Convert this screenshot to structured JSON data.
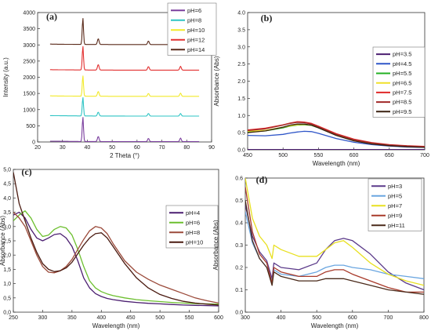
{
  "chart_data": [
    {
      "panel": "(a)",
      "type": "line",
      "title": "",
      "xlabel": "2 Theta (°)",
      "ylabel": "Intensity (a.u.)",
      "xlim": [
        20,
        90
      ],
      "ylim": [
        0,
        4000
      ],
      "xticks": [
        20,
        30,
        40,
        50,
        60,
        70,
        80,
        90
      ],
      "yticks": [
        0,
        500,
        1000,
        1500,
        2000,
        2500,
        3000,
        3500,
        4000
      ],
      "legend": "top-right",
      "peaks_2theta": [
        38.2,
        44.4,
        64.6,
        77.5
      ],
      "series": [
        {
          "name": "pH=6",
          "color": "#7b3f9e",
          "baseline": 10,
          "peak_heights": [
            760,
            160,
            100,
            110
          ]
        },
        {
          "name": "pH=8",
          "color": "#2ec4c4",
          "baseline": 800,
          "peak_heights": [
            580,
            120,
            80,
            80
          ]
        },
        {
          "name": "pH=10",
          "color": "#f2ea2a",
          "baseline": 1410,
          "peak_heights": [
            640,
            150,
            90,
            100
          ]
        },
        {
          "name": "pH=12",
          "color": "#e23030",
          "baseline": 2220,
          "peak_heights": [
            740,
            170,
            110,
            120
          ]
        },
        {
          "name": "pH=14",
          "color": "#5a2a1a",
          "baseline": 3010,
          "peak_heights": [
            820,
            180,
            110,
            130
          ]
        }
      ]
    },
    {
      "panel": "(b)",
      "type": "line",
      "title": "",
      "xlabel": "Wavelength (nm)",
      "ylabel": "Absorbance (Abs)",
      "xlim": [
        450,
        700
      ],
      "ylim": [
        0,
        4.0
      ],
      "xticks": [
        450,
        500,
        550,
        600,
        650,
        700
      ],
      "yticks": [
        0.0,
        0.5,
        1.0,
        1.5,
        2.0,
        2.5,
        3.0,
        3.5,
        4.0
      ],
      "legend": "right",
      "x": [
        450,
        475,
        500,
        510,
        520,
        530,
        540,
        550,
        575,
        600,
        625,
        650,
        675,
        700
      ],
      "series": [
        {
          "name": "pH=3.5",
          "color": "#4b1e70",
          "values": [
            0.01,
            0.01,
            0.01,
            0.01,
            0.01,
            0.01,
            0.01,
            0.01,
            0.01,
            0.01,
            0.01,
            0.01,
            0.01,
            0.01
          ]
        },
        {
          "name": "pH=4.5",
          "color": "#2f56c8",
          "values": [
            0.42,
            0.41,
            0.45,
            0.49,
            0.52,
            0.54,
            0.53,
            0.48,
            0.33,
            0.22,
            0.15,
            0.11,
            0.08,
            0.07
          ]
        },
        {
          "name": "pH=5.5",
          "color": "#22b022",
          "values": [
            0.52,
            0.55,
            0.64,
            0.69,
            0.72,
            0.73,
            0.71,
            0.64,
            0.43,
            0.27,
            0.18,
            0.13,
            0.1,
            0.08
          ]
        },
        {
          "name": "pH=6.5",
          "color": "#f0e02a",
          "values": [
            0.54,
            0.57,
            0.66,
            0.7,
            0.73,
            0.74,
            0.72,
            0.65,
            0.44,
            0.28,
            0.19,
            0.14,
            0.11,
            0.09
          ]
        },
        {
          "name": "pH=7.5",
          "color": "#e02828",
          "values": [
            0.58,
            0.63,
            0.73,
            0.78,
            0.82,
            0.81,
            0.77,
            0.69,
            0.47,
            0.31,
            0.21,
            0.15,
            0.12,
            0.1
          ]
        },
        {
          "name": "pH=8.5",
          "color": "#a02828",
          "values": [
            0.56,
            0.61,
            0.72,
            0.77,
            0.8,
            0.79,
            0.75,
            0.67,
            0.45,
            0.29,
            0.2,
            0.14,
            0.11,
            0.09
          ]
        },
        {
          "name": "pH=9.5",
          "color": "#3a2010",
          "values": [
            0.5,
            0.55,
            0.66,
            0.72,
            0.75,
            0.75,
            0.72,
            0.64,
            0.42,
            0.26,
            0.17,
            0.12,
            0.09,
            0.07
          ]
        }
      ]
    },
    {
      "panel": "(c)",
      "type": "line",
      "title": "",
      "xlabel": "Wavelength (nm)",
      "ylabel": "Absorbance (Abs)",
      "xlim": [
        250,
        600
      ],
      "ylim": [
        0,
        5.0
      ],
      "xticks": [
        250,
        300,
        350,
        400,
        450,
        500,
        550,
        600
      ],
      "yticks": [
        0.0,
        0.5,
        1.0,
        1.5,
        2.0,
        2.5,
        3.0,
        3.5,
        4.0,
        4.5,
        5.0
      ],
      "legend": "right",
      "x": [
        250,
        260,
        270,
        280,
        290,
        300,
        310,
        320,
        330,
        340,
        350,
        360,
        370,
        380,
        390,
        400,
        410,
        420,
        440,
        460,
        480,
        500,
        520,
        540,
        560,
        580,
        600
      ],
      "series": [
        {
          "name": "pH=4",
          "color": "#4b1e70",
          "values": [
            3.4,
            3.5,
            3.3,
            2.9,
            2.6,
            2.5,
            2.6,
            2.72,
            2.75,
            2.6,
            2.3,
            1.8,
            1.2,
            0.85,
            0.65,
            0.55,
            0.48,
            0.44,
            0.38,
            0.34,
            0.31,
            0.29,
            0.27,
            0.25,
            0.24,
            0.23,
            0.22
          ]
        },
        {
          "name": "pH=6",
          "color": "#6cbf2e",
          "values": [
            3.2,
            3.4,
            3.55,
            3.3,
            2.9,
            2.65,
            2.7,
            2.9,
            3.0,
            2.95,
            2.7,
            2.2,
            1.6,
            1.1,
            0.85,
            0.72,
            0.64,
            0.58,
            0.5,
            0.44,
            0.4,
            0.37,
            0.34,
            0.32,
            0.3,
            0.29,
            0.28
          ]
        },
        {
          "name": "pH=8",
          "color": "#9b4a3a",
          "values": [
            3.5,
            3.3,
            3.0,
            2.5,
            2.0,
            1.6,
            1.4,
            1.38,
            1.45,
            1.6,
            1.85,
            2.2,
            2.55,
            2.85,
            3.0,
            2.95,
            2.75,
            2.4,
            1.8,
            1.4,
            1.15,
            0.95,
            0.8,
            0.65,
            0.5,
            0.4,
            0.32
          ]
        },
        {
          "name": "pH=10",
          "color": "#4a1a10",
          "values": [
            4.9,
            3.8,
            3.2,
            2.6,
            2.1,
            1.7,
            1.5,
            1.42,
            1.45,
            1.55,
            1.75,
            2.05,
            2.35,
            2.6,
            2.75,
            2.78,
            2.6,
            2.3,
            1.7,
            1.2,
            0.85,
            0.62,
            0.48,
            0.38,
            0.32,
            0.28,
            0.25
          ]
        }
      ]
    },
    {
      "panel": "(d)",
      "type": "line",
      "title": "",
      "xlabel": "Wavelength (nm)",
      "ylabel": "Absorbance (Abs)",
      "xlim": [
        300,
        800
      ],
      "ylim": [
        0,
        0.6
      ],
      "xticks": [
        300,
        400,
        500,
        600,
        700,
        800
      ],
      "yticks": [
        0.0,
        0.1,
        0.2,
        0.3,
        0.4,
        0.5,
        0.6
      ],
      "legend": "top-right",
      "x": [
        300,
        320,
        340,
        360,
        375,
        380,
        400,
        450,
        500,
        525,
        550,
        575,
        600,
        650,
        700,
        750,
        800
      ],
      "series": [
        {
          "name": "pH=3",
          "color": "#5b3a8a",
          "values": [
            0.48,
            0.34,
            0.27,
            0.23,
            0.15,
            0.22,
            0.2,
            0.19,
            0.22,
            0.28,
            0.32,
            0.33,
            0.32,
            0.26,
            0.18,
            0.13,
            0.1
          ]
        },
        {
          "name": "pH=5",
          "color": "#6aa6e0",
          "values": [
            0.45,
            0.31,
            0.24,
            0.2,
            0.14,
            0.19,
            0.17,
            0.16,
            0.18,
            0.2,
            0.21,
            0.21,
            0.2,
            0.19,
            0.17,
            0.16,
            0.15
          ]
        },
        {
          "name": "pH=7",
          "color": "#e8e020",
          "values": [
            0.6,
            0.42,
            0.34,
            0.3,
            0.24,
            0.3,
            0.28,
            0.25,
            0.25,
            0.28,
            0.31,
            0.32,
            0.29,
            0.22,
            0.17,
            0.14,
            0.12
          ]
        },
        {
          "name": "pH=9",
          "color": "#a83a2a",
          "values": [
            0.56,
            0.36,
            0.26,
            0.22,
            0.13,
            0.2,
            0.18,
            0.16,
            0.16,
            0.18,
            0.19,
            0.19,
            0.17,
            0.14,
            0.11,
            0.09,
            0.09
          ]
        },
        {
          "name": "pH=11",
          "color": "#4a2a1a",
          "values": [
            0.5,
            0.32,
            0.24,
            0.2,
            0.12,
            0.18,
            0.16,
            0.14,
            0.14,
            0.15,
            0.15,
            0.15,
            0.14,
            0.12,
            0.1,
            0.09,
            0.08
          ]
        }
      ]
    }
  ]
}
